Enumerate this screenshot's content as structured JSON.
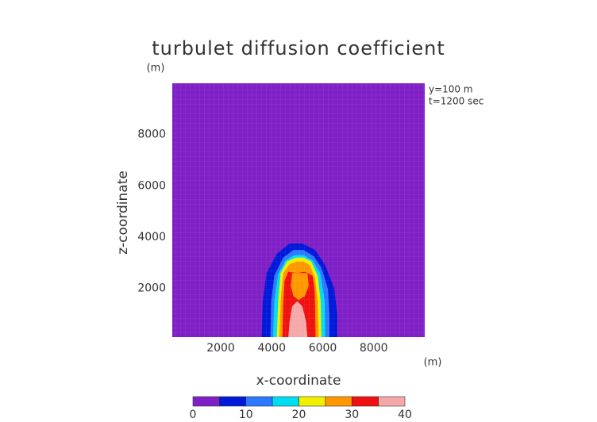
{
  "chart_data": {
    "type": "contour",
    "title": "turbulet diffusion coefficient",
    "x_label": "x-coordinate",
    "y_label": "z-coordinate",
    "x_unit": "(m)",
    "y_unit": "(m)",
    "annotations": [
      "y=100 m",
      "t=1200 sec"
    ],
    "xlim": [
      100,
      10000
    ],
    "ylim": [
      100,
      10000
    ],
    "xticks": [
      2000,
      4000,
      6000,
      8000
    ],
    "yticks": [
      2000,
      4000,
      6000,
      8000
    ],
    "levels": [
      0,
      5,
      10,
      15,
      20,
      25,
      30,
      35,
      40
    ],
    "colors": [
      "#7f1fc6",
      "#0018d8",
      "#2c78ff",
      "#00dcf0",
      "#f0f000",
      "#ff9800",
      "#f01010",
      "#f5a8a8"
    ],
    "colorbar_ticks": [
      0,
      10,
      20,
      30,
      40
    ],
    "contours": [
      {
        "level": 5,
        "x": [
          3600,
          3650,
          3800,
          4200,
          4700,
          5200,
          5700,
          6100,
          6450,
          6570,
          6570
        ],
        "z": [
          100,
          1500,
          2600,
          3350,
          3750,
          3750,
          3500,
          2900,
          2000,
          1000,
          100
        ]
      },
      {
        "level": 10,
        "x": [
          3950,
          3980,
          4100,
          4450,
          4850,
          5250,
          5650,
          5950,
          6200,
          6260,
          6260
        ],
        "z": [
          100,
          1500,
          2500,
          3200,
          3500,
          3500,
          3250,
          2800,
          2000,
          1000,
          100
        ]
      },
      {
        "level": 15,
        "x": [
          4050,
          4100,
          4250,
          4550,
          4900,
          5250,
          5600,
          5900,
          6080,
          6100
        ],
        "z": [
          100,
          1500,
          2550,
          3100,
          3300,
          3300,
          3100,
          2600,
          1500,
          100
        ]
      },
      {
        "level": 20,
        "x": [
          4200,
          4250,
          4350,
          4600,
          4950,
          5250,
          5550,
          5800,
          5920,
          5950
        ],
        "z": [
          100,
          1500,
          2600,
          3050,
          3200,
          3200,
          3050,
          2500,
          1500,
          100
        ]
      },
      {
        "level": 25,
        "x": [
          4300,
          4350,
          4450,
          4700,
          5000,
          5250,
          5500,
          5700,
          5800,
          5850
        ],
        "z": [
          100,
          1500,
          2600,
          2950,
          3050,
          3050,
          2900,
          2400,
          1500,
          100
        ]
      },
      {
        "level": 30,
        "x": [
          4420,
          4450,
          4500,
          4650,
          5000,
          5300,
          5600,
          5680,
          5700,
          5720
        ],
        "z": [
          100,
          1300,
          2300,
          2650,
          2600,
          2650,
          2500,
          2000,
          1300,
          100
        ]
      },
      {
        "level": 25,
        "x": [
          4800,
          4750,
          4850,
          5050,
          5300,
          5450,
          5400
        ],
        "z": [
          2600,
          2100,
          1700,
          1550,
          1700,
          2100,
          2600
        ]
      },
      {
        "level": 35,
        "x": [
          4650,
          4700,
          4800,
          5000,
          5200,
          5350,
          5400
        ],
        "z": [
          100,
          700,
          1300,
          1500,
          1300,
          700,
          100
        ]
      }
    ]
  }
}
